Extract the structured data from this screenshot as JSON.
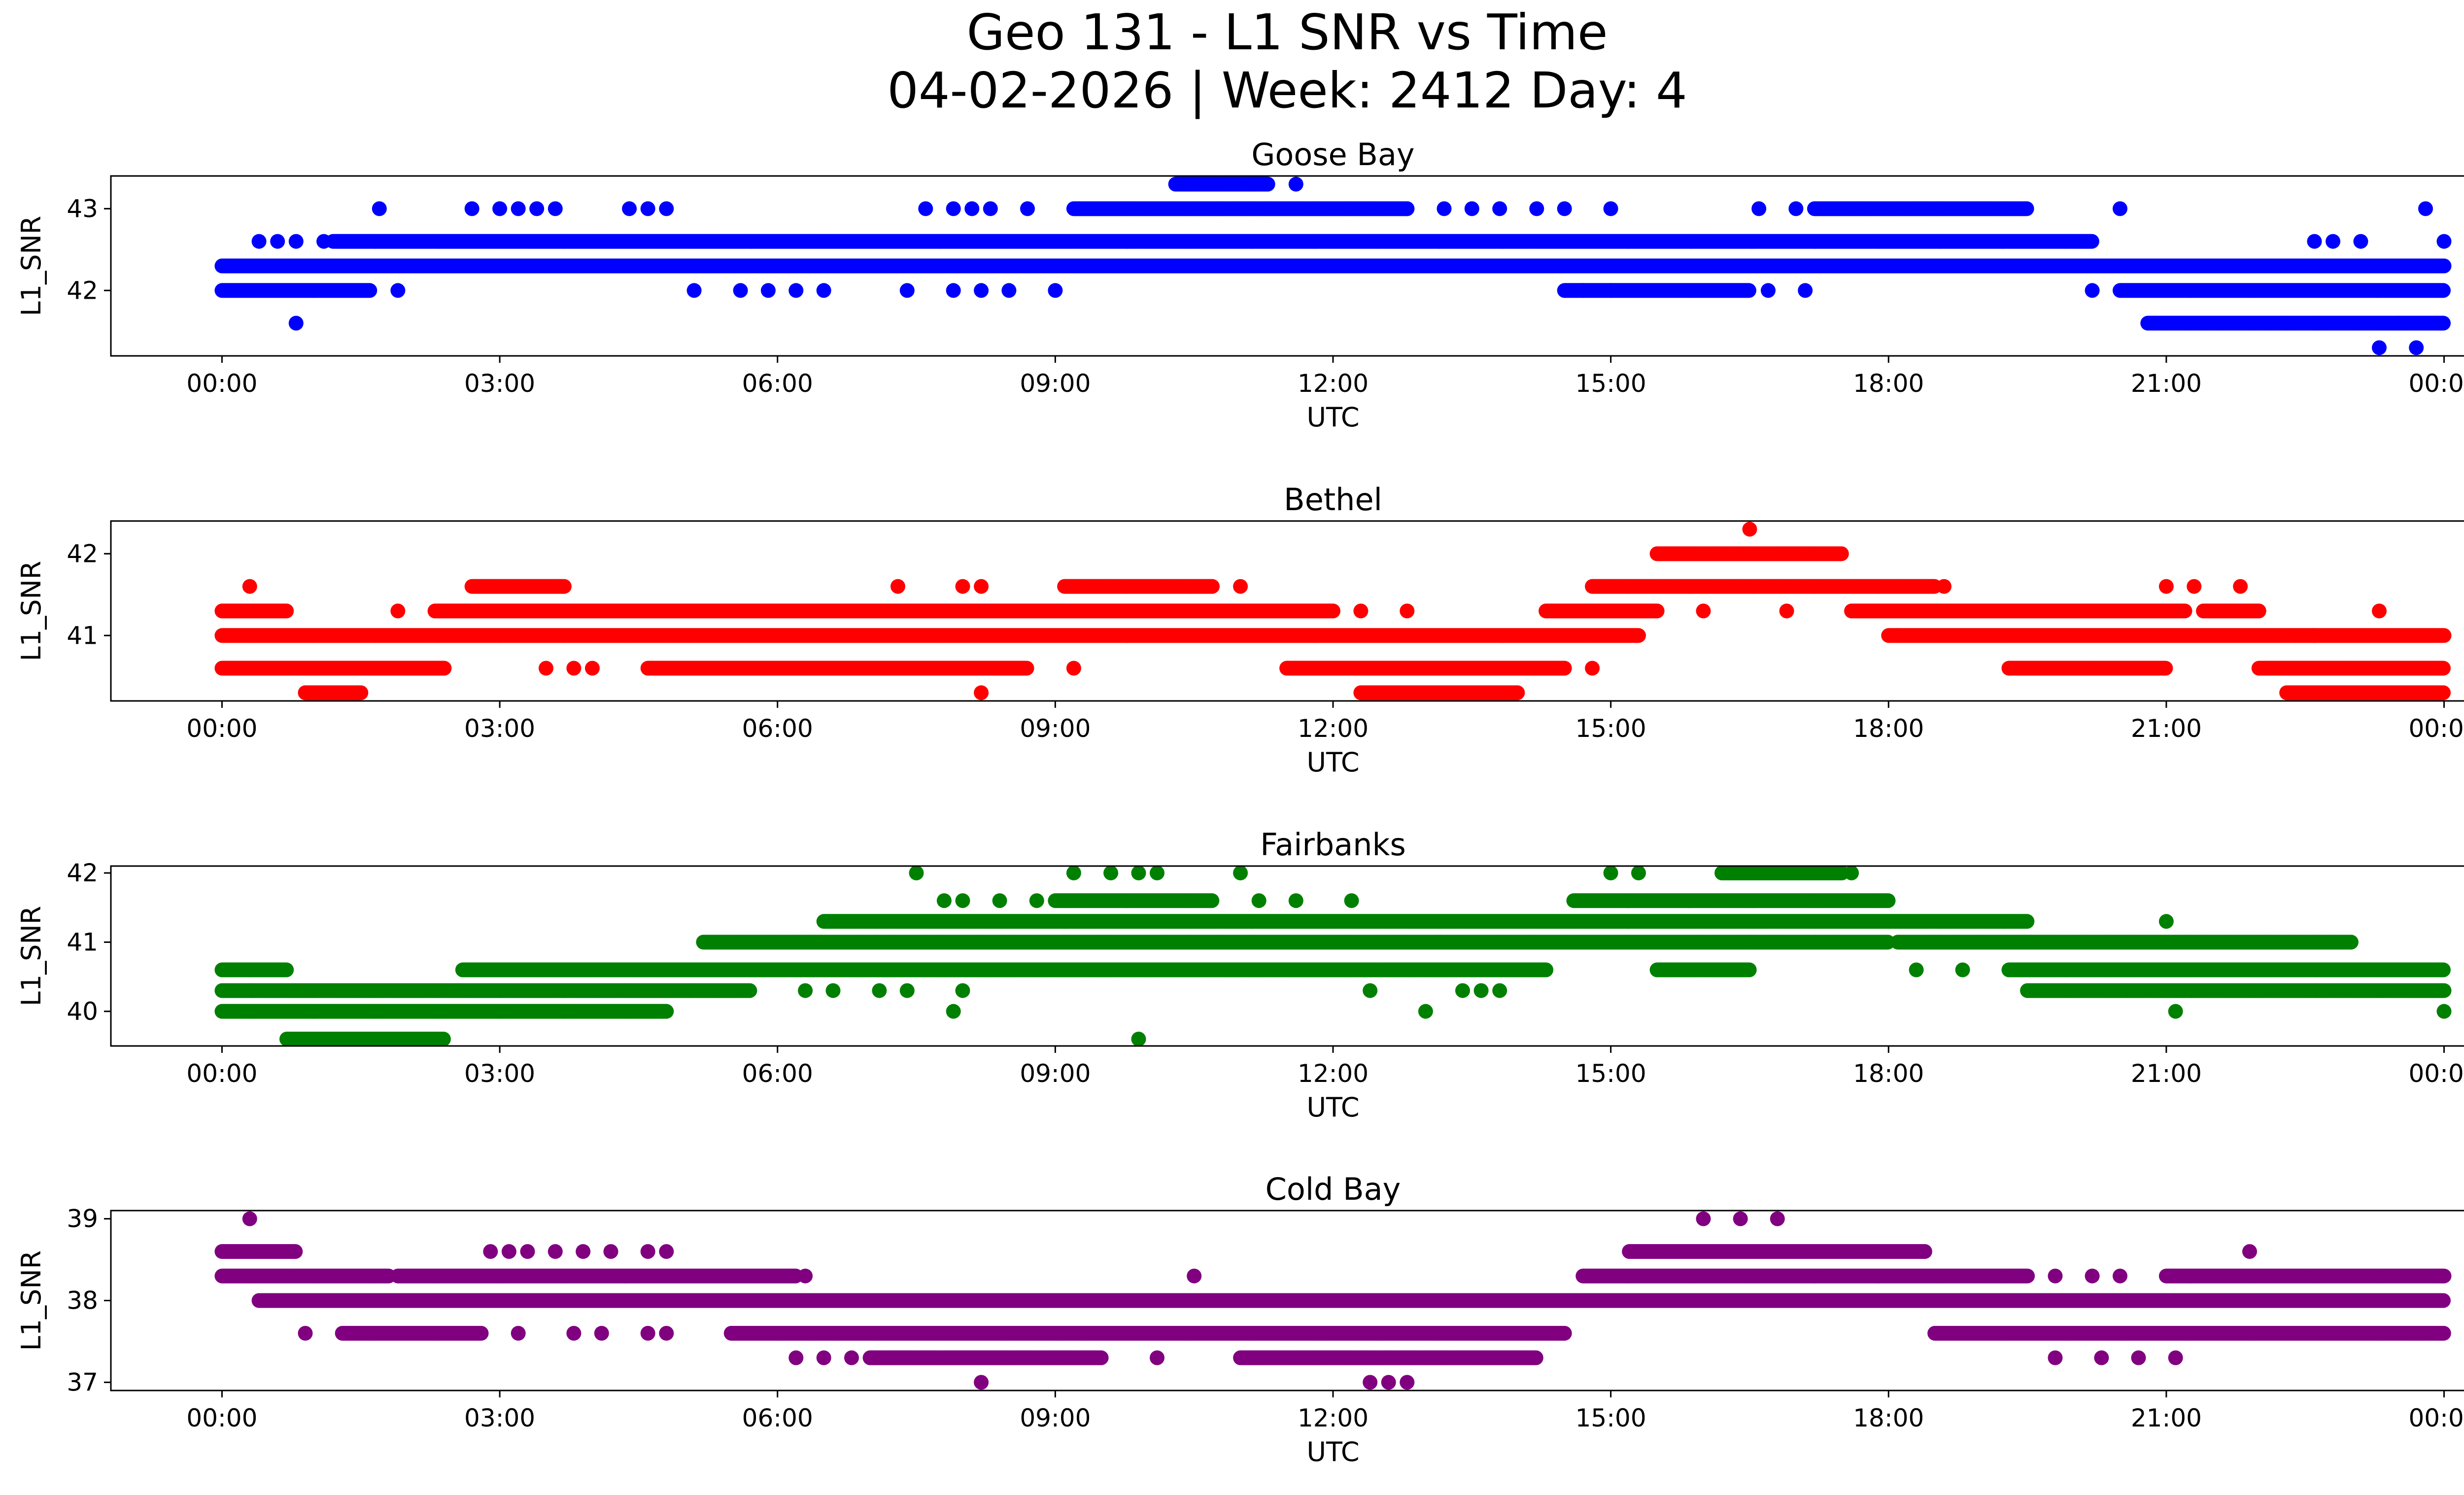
{
  "chart_data": {
    "type": "scatter",
    "title": "Geo 131 - L1 SNR vs Time",
    "subtitle": "04-02-2026 | Week: 2412 Day: 4",
    "x_ticks": [
      "00:00",
      "03:00",
      "06:00",
      "09:00",
      "12:00",
      "15:00",
      "18:00",
      "21:00",
      "00:00"
    ],
    "xlim_hours": [
      -1.2,
      25.2
    ],
    "panels": [
      {
        "name": "Goose Bay",
        "color": "#0000ff",
        "xlabel": "UTC",
        "ylabel": "L1_SNR",
        "ylim": [
          41.2,
          43.4
        ],
        "yticks": [
          42,
          43
        ],
        "ytick_labels": [
          "42",
          "43"
        ],
        "bands": [
          {
            "y": 42.6,
            "ranges": [
              [
                1.2,
                20.2
              ]
            ]
          },
          {
            "y": 42.3,
            "ranges": [
              [
                0.0,
                24.0
              ]
            ]
          },
          {
            "y": 42.0,
            "ranges": [
              [
                0.0,
                1.6
              ],
              [
                14.5,
                16.5
              ],
              [
                20.5,
                24.0
              ]
            ]
          },
          {
            "y": 43.0,
            "ranges": [
              [
                9.2,
                12.8
              ],
              [
                17.2,
                19.5
              ]
            ]
          },
          {
            "y": 43.3,
            "ranges": [
              [
                10.3,
                11.3
              ]
            ]
          },
          {
            "y": 41.6,
            "ranges": [
              [
                20.8,
                24.0
              ]
            ]
          }
        ],
        "scattered": [
          [
            0.4,
            42.6
          ],
          [
            0.6,
            42.6
          ],
          [
            0.8,
            42.6
          ],
          [
            0.8,
            41.6
          ],
          [
            1.1,
            42.6
          ],
          [
            1.7,
            43.0
          ],
          [
            1.9,
            42.0
          ],
          [
            2.7,
            43.0
          ],
          [
            3.0,
            43.0
          ],
          [
            3.2,
            43.0
          ],
          [
            3.4,
            43.0
          ],
          [
            3.6,
            43.0
          ],
          [
            4.4,
            43.0
          ],
          [
            4.6,
            43.0
          ],
          [
            4.8,
            43.0
          ],
          [
            5.1,
            42.0
          ],
          [
            5.6,
            42.0
          ],
          [
            5.9,
            42.0
          ],
          [
            6.2,
            42.0
          ],
          [
            6.5,
            42.0
          ],
          [
            7.4,
            42.0
          ],
          [
            7.6,
            43.0
          ],
          [
            7.9,
            43.0
          ],
          [
            8.1,
            43.0
          ],
          [
            8.3,
            43.0
          ],
          [
            7.9,
            42.0
          ],
          [
            8.2,
            42.0
          ],
          [
            8.5,
            42.0
          ],
          [
            8.7,
            43.0
          ],
          [
            9.0,
            42.0
          ],
          [
            10.3,
            42.3
          ],
          [
            10.8,
            43.0
          ],
          [
            11.3,
            43.0
          ],
          [
            11.6,
            43.3
          ],
          [
            11.4,
            42.3
          ],
          [
            12.2,
            43.0
          ],
          [
            12.8,
            43.0
          ],
          [
            13.2,
            43.0
          ],
          [
            13.5,
            43.0
          ],
          [
            13.8,
            43.0
          ],
          [
            14.2,
            43.0
          ],
          [
            14.5,
            43.0
          ],
          [
            15.0,
            43.0
          ],
          [
            14.7,
            42.0
          ],
          [
            15.0,
            42.0
          ],
          [
            16.6,
            43.0
          ],
          [
            17.0,
            43.0
          ],
          [
            16.7,
            42.0
          ],
          [
            17.1,
            42.0
          ],
          [
            20.2,
            42.0
          ],
          [
            20.5,
            43.0
          ],
          [
            22.3,
            41.6
          ],
          [
            22.6,
            41.6
          ],
          [
            22.6,
            42.6
          ],
          [
            22.8,
            42.6
          ],
          [
            23.1,
            42.6
          ],
          [
            23.3,
            41.3
          ],
          [
            23.5,
            41.6
          ],
          [
            23.7,
            41.3
          ],
          [
            23.8,
            43.0
          ],
          [
            24.0,
            42.6
          ]
        ]
      },
      {
        "name": "Bethel",
        "color": "#ff0000",
        "xlabel": "UTC",
        "ylabel": "L1_SNR",
        "ylim": [
          40.2,
          42.4
        ],
        "yticks": [
          41,
          42
        ],
        "ytick_labels": [
          "41",
          "42"
        ],
        "bands": [
          {
            "y": 41.3,
            "ranges": [
              [
                0.0,
                0.7
              ],
              [
                2.3,
                12.0
              ],
              [
                14.3,
                15.5
              ],
              [
                17.6,
                21.2
              ],
              [
                21.4,
                22.0
              ]
            ]
          },
          {
            "y": 41.0,
            "ranges": [
              [
                0.0,
                15.3
              ],
              [
                18.0,
                24.0
              ]
            ]
          },
          {
            "y": 40.6,
            "ranges": [
              [
                0.0,
                2.4
              ],
              [
                4.6,
                8.7
              ],
              [
                11.5,
                14.5
              ],
              [
                19.3,
                21.0
              ],
              [
                22.0,
                24.0
              ]
            ]
          },
          {
            "y": 41.6,
            "ranges": [
              [
                2.7,
                3.7
              ],
              [
                9.1,
                10.7
              ],
              [
                14.8,
                18.5
              ]
            ]
          },
          {
            "y": 42.0,
            "ranges": [
              [
                15.5,
                17.5
              ]
            ]
          },
          {
            "y": 40.3,
            "ranges": [
              [
                0.9,
                1.5
              ],
              [
                12.3,
                14.0
              ],
              [
                22.3,
                24.0
              ]
            ]
          }
        ],
        "scattered": [
          [
            0.3,
            41.6
          ],
          [
            1.9,
            41.3
          ],
          [
            3.5,
            40.6
          ],
          [
            3.8,
            40.6
          ],
          [
            4.0,
            40.6
          ],
          [
            7.3,
            41.6
          ],
          [
            8.0,
            41.6
          ],
          [
            8.2,
            40.3
          ],
          [
            8.2,
            41.6
          ],
          [
            9.2,
            40.6
          ],
          [
            11.0,
            41.6
          ],
          [
            12.0,
            41.3
          ],
          [
            12.3,
            41.3
          ],
          [
            12.8,
            41.3
          ],
          [
            14.8,
            40.6
          ],
          [
            16.5,
            42.3
          ],
          [
            16.0,
            41.3
          ],
          [
            16.9,
            41.3
          ],
          [
            18.6,
            41.6
          ],
          [
            18.1,
            41.0
          ],
          [
            20.1,
            41.3
          ],
          [
            20.2,
            40.6
          ],
          [
            21.0,
            41.6
          ],
          [
            21.3,
            41.6
          ],
          [
            21.8,
            41.6
          ],
          [
            22.4,
            41.0
          ],
          [
            22.6,
            41.0
          ],
          [
            23.3,
            41.3
          ],
          [
            23.0,
            40.6
          ]
        ]
      },
      {
        "name": "Fairbanks",
        "color": "#008000",
        "xlabel": "UTC",
        "ylabel": "L1_SNR",
        "ylim": [
          39.5,
          42.1
        ],
        "yticks": [
          40,
          41,
          42
        ],
        "ytick_labels": [
          "40",
          "41",
          "42"
        ],
        "bands": [
          {
            "y": 40.6,
            "ranges": [
              [
                0.0,
                0.7
              ],
              [
                2.6,
                14.3
              ],
              [
                15.5,
                16.5
              ],
              [
                19.3,
                24.0
              ]
            ]
          },
          {
            "y": 40.3,
            "ranges": [
              [
                0.0,
                5.7
              ],
              [
                19.5,
                24.0
              ]
            ]
          },
          {
            "y": 40.0,
            "ranges": [
              [
                0.0,
                4.8
              ]
            ]
          },
          {
            "y": 41.0,
            "ranges": [
              [
                5.2,
                18.0
              ],
              [
                18.1,
                23.0
              ]
            ]
          },
          {
            "y": 41.3,
            "ranges": [
              [
                6.5,
                19.5
              ]
            ]
          },
          {
            "y": 41.6,
            "ranges": [
              [
                9.0,
                10.7
              ],
              [
                14.6,
                18.0
              ]
            ]
          },
          {
            "y": 42.0,
            "ranges": [
              [
                16.2,
                17.5
              ]
            ]
          },
          {
            "y": 39.6,
            "ranges": [
              [
                0.7,
                2.4
              ]
            ]
          }
        ],
        "scattered": [
          [
            6.3,
            40.3
          ],
          [
            6.6,
            40.3
          ],
          [
            7.1,
            40.3
          ],
          [
            7.4,
            40.3
          ],
          [
            7.5,
            42.0
          ],
          [
            7.8,
            41.6
          ],
          [
            8.0,
            41.6
          ],
          [
            8.0,
            40.3
          ],
          [
            7.9,
            40.0
          ],
          [
            8.4,
            41.6
          ],
          [
            8.8,
            41.6
          ],
          [
            9.2,
            42.0
          ],
          [
            9.6,
            42.0
          ],
          [
            9.9,
            42.0
          ],
          [
            10.1,
            42.0
          ],
          [
            9.9,
            39.6
          ],
          [
            10.0,
            40.6
          ],
          [
            11.0,
            42.0
          ],
          [
            11.2,
            41.6
          ],
          [
            11.6,
            41.6
          ],
          [
            12.2,
            41.6
          ],
          [
            12.4,
            40.3
          ],
          [
            13.0,
            40.0
          ],
          [
            13.4,
            40.3
          ],
          [
            13.6,
            40.3
          ],
          [
            13.8,
            40.3
          ],
          [
            15.0,
            42.0
          ],
          [
            15.3,
            42.0
          ],
          [
            16.0,
            41.0
          ],
          [
            16.5,
            41.0
          ],
          [
            17.6,
            42.0
          ],
          [
            18.3,
            40.6
          ],
          [
            18.8,
            40.6
          ],
          [
            21.0,
            41.3
          ],
          [
            21.1,
            40.0
          ],
          [
            24.0,
            40.0
          ]
        ]
      },
      {
        "name": "Cold Bay",
        "color": "#800080",
        "xlabel": "UTC",
        "ylabel": "L1_SNR",
        "ylim": [
          36.9,
          39.1
        ],
        "yticks": [
          37,
          38,
          39
        ],
        "ytick_labels": [
          "37",
          "38",
          "39"
        ],
        "bands": [
          {
            "y": 38.3,
            "ranges": [
              [
                0.0,
                1.8
              ],
              [
                1.9,
                6.2
              ],
              [
                14.7,
                19.5
              ],
              [
                21.0,
                24.0
              ]
            ]
          },
          {
            "y": 38.0,
            "ranges": [
              [
                0.4,
                24.0
              ]
            ]
          },
          {
            "y": 37.6,
            "ranges": [
              [
                1.3,
                2.8
              ],
              [
                5.5,
                14.5
              ],
              [
                18.5,
                24.0
              ]
            ]
          },
          {
            "y": 38.6,
            "ranges": [
              [
                0.0,
                0.8
              ],
              [
                15.2,
                18.4
              ]
            ]
          },
          {
            "y": 37.3,
            "ranges": [
              [
                7.0,
                9.5
              ],
              [
                11.0,
                14.2
              ]
            ]
          }
        ],
        "scattered": [
          [
            0.3,
            39.0
          ],
          [
            0.9,
            37.6
          ],
          [
            2.9,
            38.6
          ],
          [
            3.1,
            38.6
          ],
          [
            3.3,
            38.6
          ],
          [
            3.6,
            38.6
          ],
          [
            3.9,
            38.6
          ],
          [
            4.2,
            38.6
          ],
          [
            4.6,
            38.6
          ],
          [
            4.8,
            38.6
          ],
          [
            3.2,
            37.6
          ],
          [
            3.8,
            37.6
          ],
          [
            4.1,
            37.6
          ],
          [
            4.6,
            37.6
          ],
          [
            4.8,
            37.6
          ],
          [
            6.3,
            38.3
          ],
          [
            6.2,
            37.3
          ],
          [
            6.5,
            37.3
          ],
          [
            6.8,
            37.3
          ],
          [
            8.2,
            37.0
          ],
          [
            10.1,
            37.3
          ],
          [
            10.5,
            38.3
          ],
          [
            12.4,
            37.0
          ],
          [
            12.6,
            37.0
          ],
          [
            12.8,
            37.0
          ],
          [
            16.0,
            39.0
          ],
          [
            16.4,
            39.0
          ],
          [
            16.8,
            39.0
          ],
          [
            19.8,
            38.3
          ],
          [
            20.2,
            38.3
          ],
          [
            20.5,
            38.3
          ],
          [
            19.8,
            37.3
          ],
          [
            20.3,
            37.3
          ],
          [
            20.7,
            37.3
          ],
          [
            21.1,
            37.3
          ],
          [
            21.9,
            38.6
          ],
          [
            23.7,
            37.6
          ]
        ]
      }
    ]
  }
}
